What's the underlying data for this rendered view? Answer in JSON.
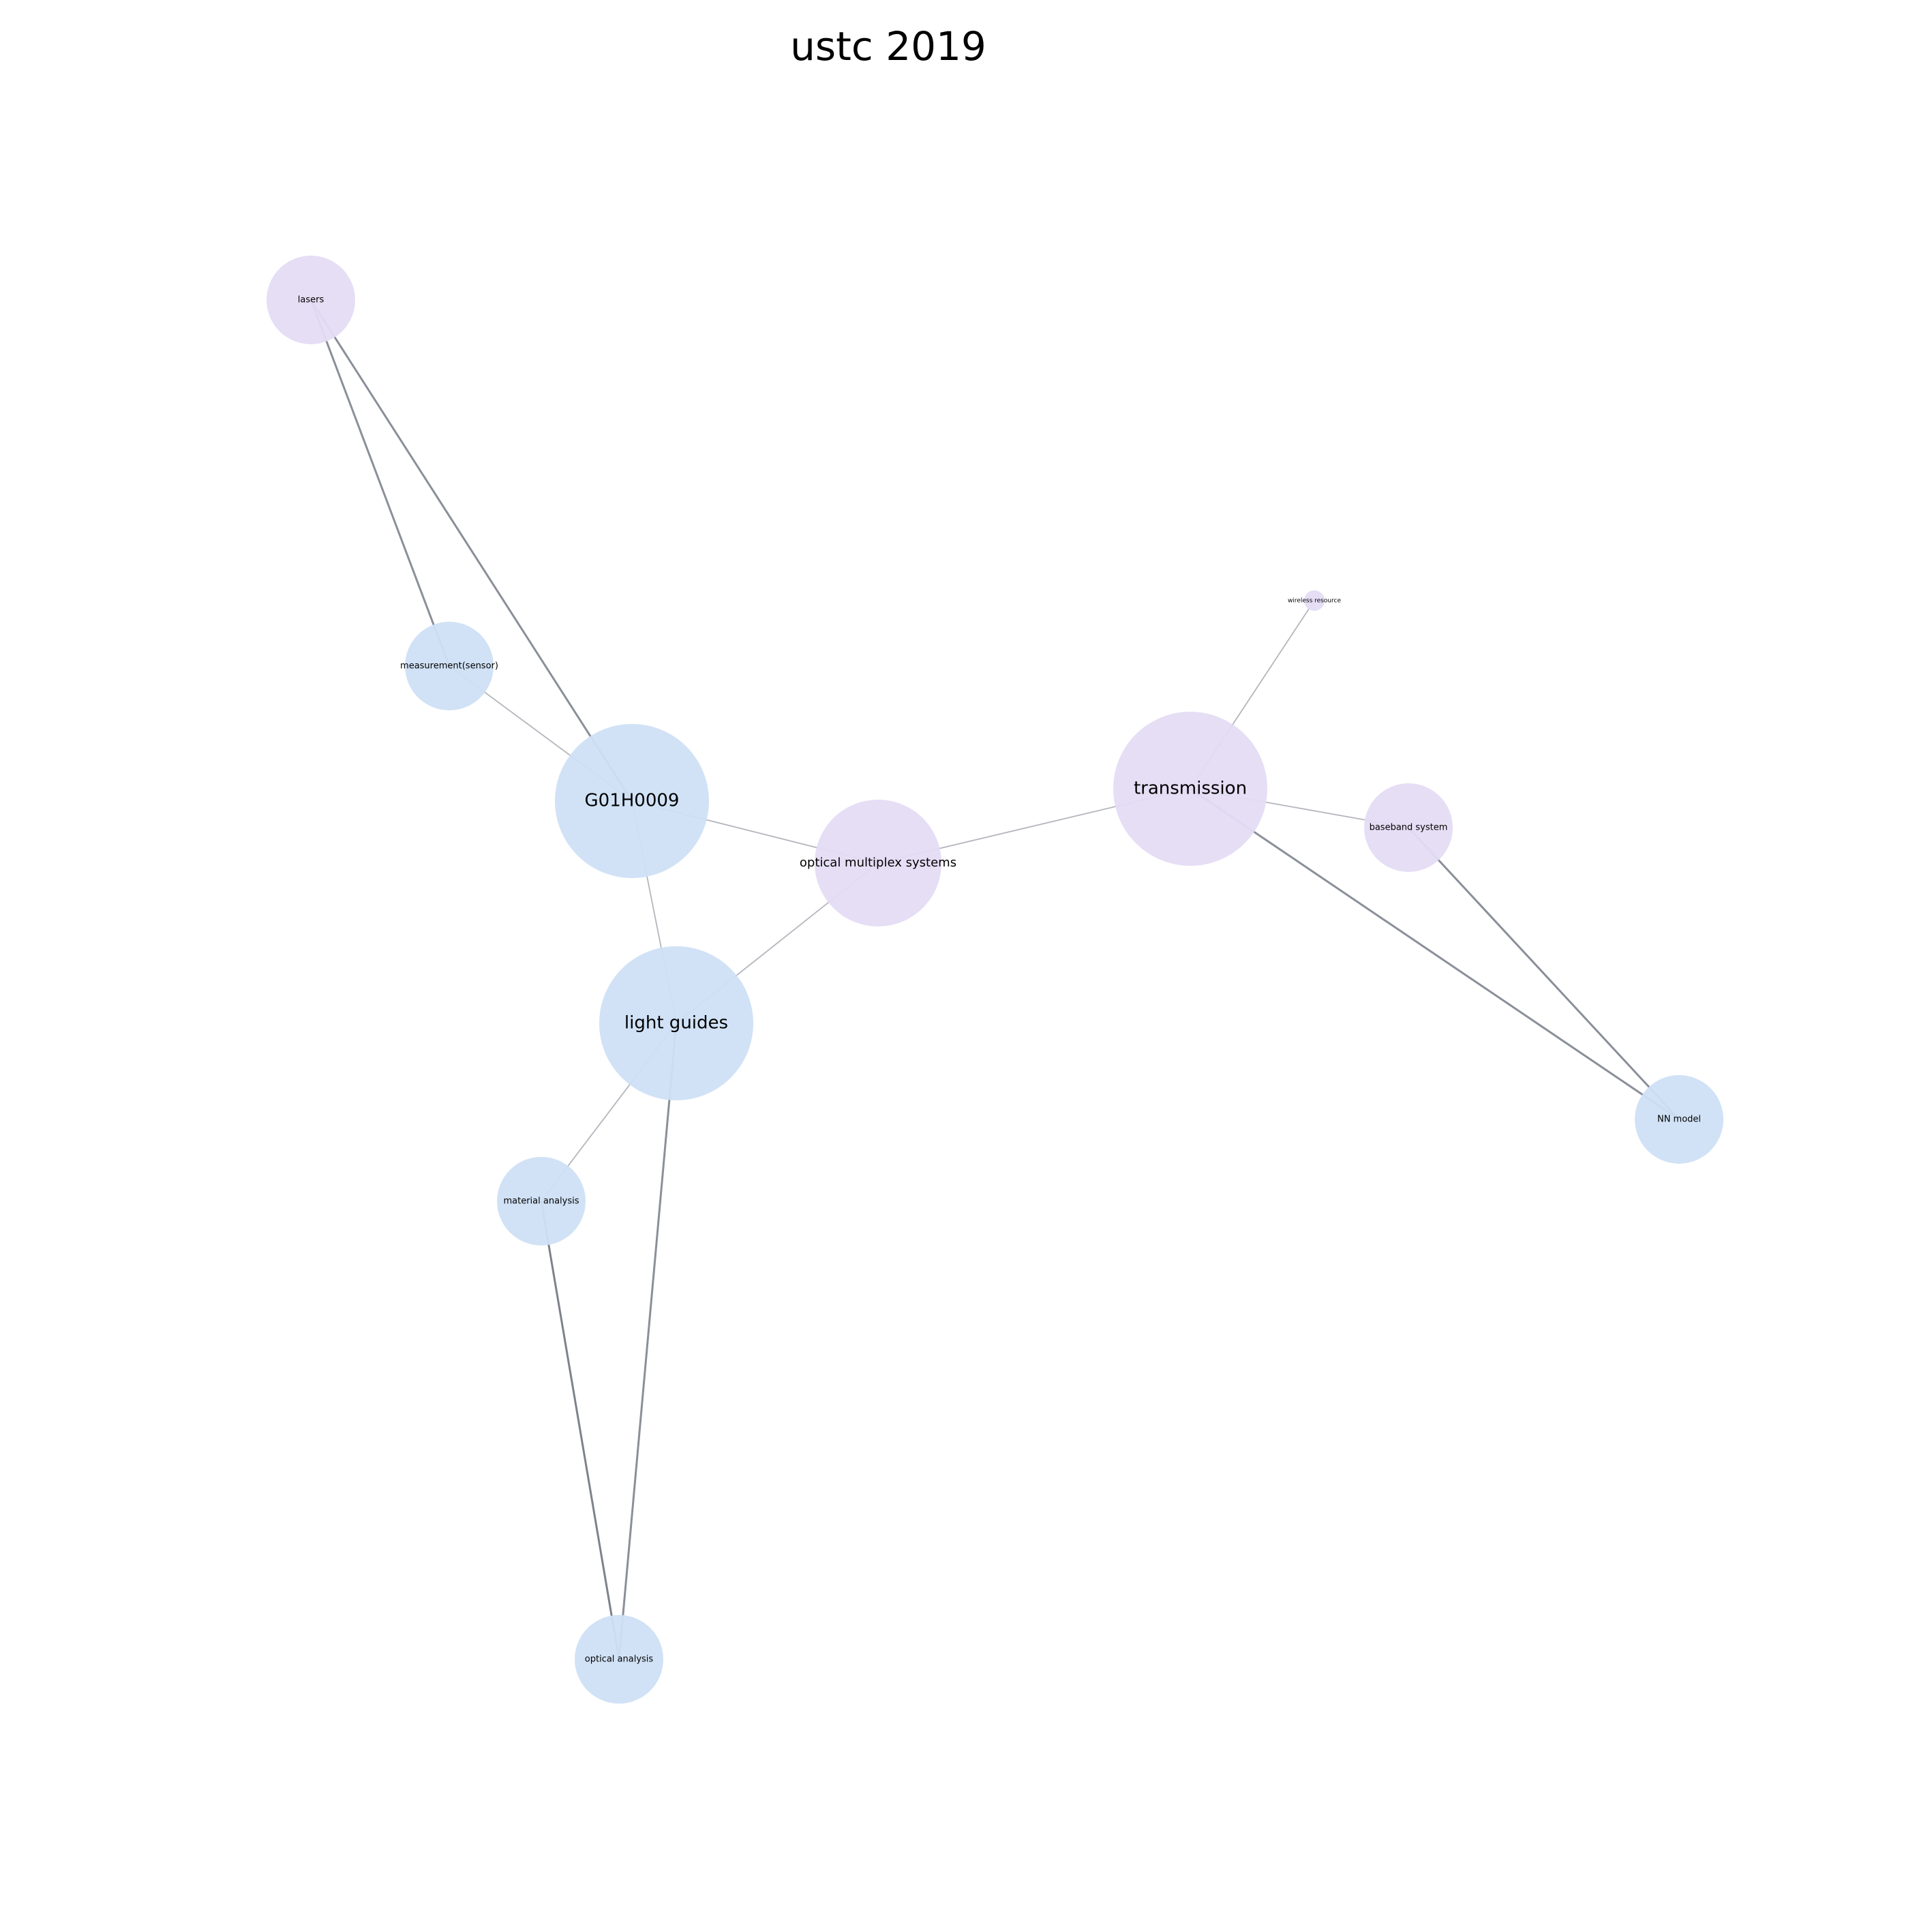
{
  "title": "ustc 2019",
  "nodes": [
    {
      "label": "lasers",
      "color": "#e4dcf4"
    },
    {
      "label": "measurement(sensor)",
      "color": "#cfe0f5"
    },
    {
      "label": "G01H0009",
      "color": "#cfe0f5"
    },
    {
      "label": "optical multiplex systems",
      "color": "#e4dcf4"
    },
    {
      "label": "transmission",
      "color": "#e4dcf4"
    },
    {
      "label": "wireless resource",
      "color": "#e4dcf4"
    },
    {
      "label": "baseband system",
      "color": "#e4dcf4"
    },
    {
      "label": "light guides",
      "color": "#cfe0f5"
    },
    {
      "label": "material analysis",
      "color": "#cfe0f5"
    },
    {
      "label": "optical analysis",
      "color": "#cfe0f5"
    },
    {
      "label": "NN model",
      "color": "#cfe0f5"
    }
  ],
  "edges": [
    {
      "from": "lasers",
      "to": "measurement(sensor)",
      "color": "#8a8f99"
    },
    {
      "from": "lasers",
      "to": "G01H0009",
      "color": "#8a8f99"
    },
    {
      "from": "measurement(sensor)",
      "to": "G01H0009",
      "color": "#b3b6bc"
    },
    {
      "from": "G01H0009",
      "to": "optical multiplex systems",
      "color": "#b3b6bc"
    },
    {
      "from": "G01H0009",
      "to": "light guides",
      "color": "#b3b6bc"
    },
    {
      "from": "optical multiplex systems",
      "to": "transmission",
      "color": "#b3b6bc"
    },
    {
      "from": "optical multiplex systems",
      "to": "light guides",
      "color": "#b3b6bc"
    },
    {
      "from": "light guides",
      "to": "material analysis",
      "color": "#b3b6bc"
    },
    {
      "from": "light guides",
      "to": "optical analysis",
      "color": "#8a8f99"
    },
    {
      "from": "material analysis",
      "to": "optical analysis",
      "color": "#7d828c"
    },
    {
      "from": "transmission",
      "to": "wireless resource",
      "color": "#b3b6bc"
    },
    {
      "from": "transmission",
      "to": "baseband system",
      "color": "#b3b6bc"
    },
    {
      "from": "transmission",
      "to": "NN model",
      "color": "#8a8f99"
    },
    {
      "from": "baseband system",
      "to": "NN model",
      "color": "#8a8f99"
    }
  ]
}
